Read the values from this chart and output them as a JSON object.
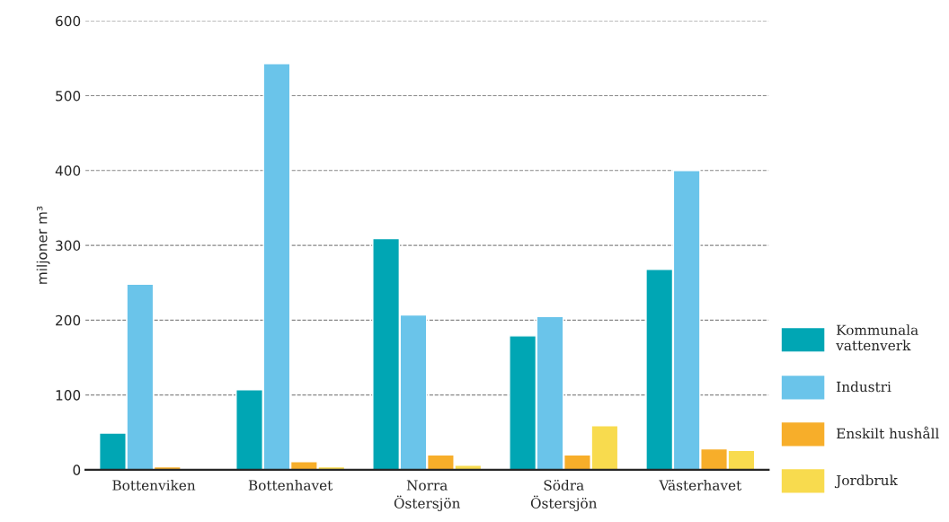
{
  "chart_data": {
    "type": "bar",
    "ylabel": "miljoner m³",
    "categories": [
      "Bottenviken",
      "Bottenhavet",
      "Norra\nÖstersjön",
      "Södra\nÖstersjön",
      "Västerhavet"
    ],
    "series": [
      {
        "name": "Kommunala\nvattenverk",
        "color": "#00a6b4",
        "values": [
          49,
          107,
          309,
          179,
          268
        ]
      },
      {
        "name": "Industri",
        "color": "#6ac4ea",
        "values": [
          248,
          543,
          207,
          205,
          400
        ]
      },
      {
        "name": "Enskilt hushåll",
        "color": "#f7ae2a",
        "values": [
          4,
          11,
          20,
          20,
          28
        ]
      },
      {
        "name": "Jordbruk",
        "color": "#f8db4e",
        "values": [
          null,
          4,
          6,
          59,
          26
        ]
      }
    ],
    "ylim": [
      0,
      600
    ],
    "yticks": [
      0,
      100,
      200,
      300,
      400,
      500,
      600
    ],
    "grid": "y",
    "legend": "right"
  }
}
